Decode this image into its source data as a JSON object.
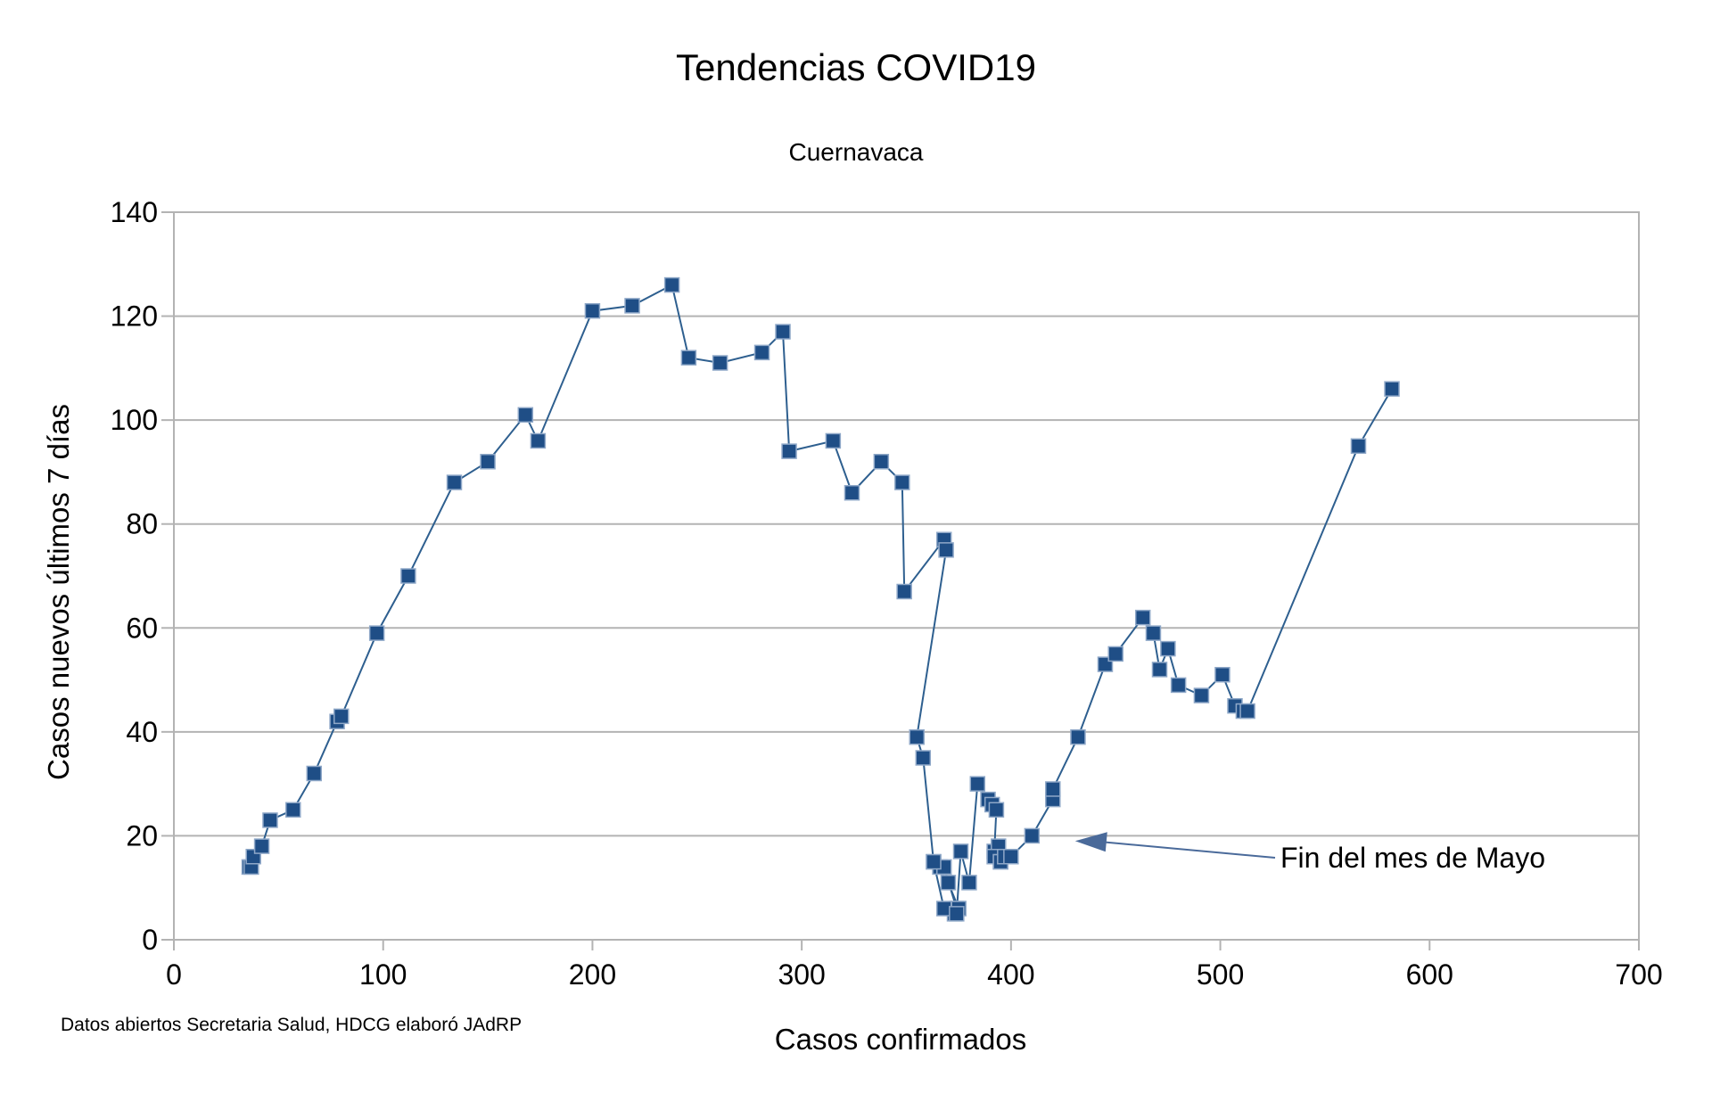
{
  "chart_data": {
    "type": "scatter",
    "title": "Tendencias COVID19",
    "subtitle": "Cuernavaca",
    "xlabel": "Casos confirmados",
    "ylabel": "Casos nuevos últimos 7 días",
    "source": "Datos abiertos Secretaria Salud, HDCG elaboró JAdRP",
    "xlim": [
      0,
      700
    ],
    "ylim": [
      0,
      140
    ],
    "xticks": [
      "0",
      "100",
      "200",
      "300",
      "400",
      "500",
      "600",
      "700"
    ],
    "yticks": [
      "0",
      "20",
      "40",
      "60",
      "80",
      "100",
      "120",
      "140"
    ],
    "grid": "horizontal",
    "legend": "none",
    "series_color": "#2e5f8f",
    "marker_color": "#1f4e86",
    "marker": "square",
    "annotation": {
      "text": "Fin del mes de Mayo",
      "point_x": 420,
      "point_y": 19
    },
    "series": [
      {
        "x": [
          36,
          37,
          38,
          42,
          46,
          57,
          67,
          78,
          80,
          97,
          112,
          134,
          150,
          168,
          174,
          200,
          219,
          238,
          246,
          261,
          281,
          291,
          294,
          315,
          324,
          338,
          348,
          349,
          368,
          369,
          355,
          358,
          363,
          366,
          368,
          374,
          373,
          375,
          370,
          363,
          368,
          374,
          376,
          380,
          384,
          389,
          391,
          393,
          392,
          394,
          392,
          395,
          395,
          397,
          400,
          410,
          420,
          420,
          432,
          445,
          450,
          463,
          468,
          471,
          475,
          480,
          491,
          501,
          507,
          511,
          513,
          566,
          582
        ],
        "y": [
          14,
          14,
          16,
          18,
          23,
          25,
          32,
          42,
          43,
          59,
          70,
          88,
          92,
          101,
          96,
          121,
          122,
          126,
          112,
          111,
          113,
          117,
          94,
          96,
          86,
          92,
          88,
          67,
          77,
          75,
          39,
          35,
          15,
          14,
          14,
          6,
          5,
          6,
          11,
          15,
          6,
          5,
          17,
          11,
          30,
          27,
          26,
          25,
          17,
          18,
          16,
          15,
          15,
          16,
          16,
          20,
          27,
          29,
          39,
          53,
          55,
          62,
          59,
          52,
          56,
          49,
          47,
          51,
          45,
          44,
          44,
          95,
          106
        ]
      }
    ]
  }
}
